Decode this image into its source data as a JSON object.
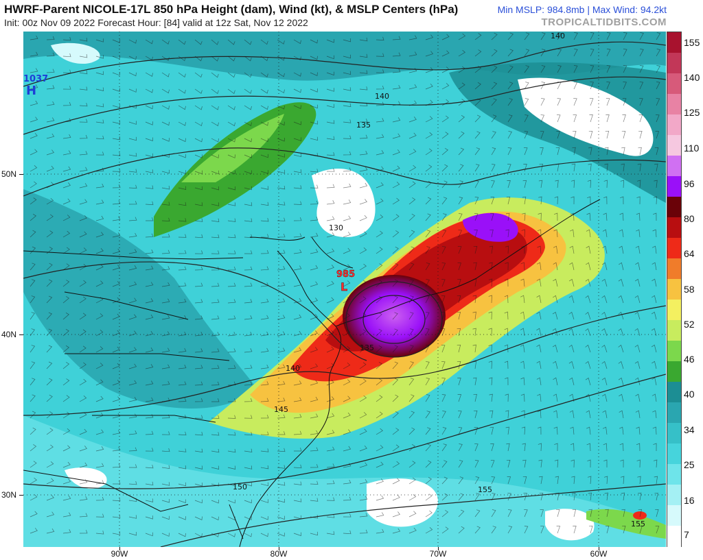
{
  "header": {
    "title": "HWRF-Parent NICOLE-17L 850 hPa Height (dam), Wind (kt), & MSLP Centers (hPa)",
    "subtitle": "Init: 00z Nov 09 2022   Forecast Hour: [84]   valid at 12z Sat, Nov 12 2022",
    "stats": "Min MSLP: 984.8mb | Max Wind: 94.2kt",
    "brand": "TROPICALTIDBITS.COM"
  },
  "axes": {
    "latitudes": [
      "50N",
      "40N",
      "30N"
    ],
    "longitudes": [
      "90W",
      "80W",
      "70W",
      "60W"
    ]
  },
  "colorbar": {
    "labels": [
      "155",
      "140",
      "125",
      "110",
      "96",
      "80",
      "64",
      "58",
      "52",
      "46",
      "40",
      "34",
      "25",
      "16",
      "7"
    ],
    "colors": [
      "#a8122e",
      "#c23758",
      "#d75a7a",
      "#e882a4",
      "#f2a8c8",
      "#f6c8e0",
      "#d070f2",
      "#9a10f8",
      "#6a0208",
      "#b80e10",
      "#ee2a18",
      "#f07c2a",
      "#f7c240",
      "#f4f060",
      "#c8ec5e",
      "#7cd84c",
      "#3aa830",
      "#1c8e94",
      "#2aa6b0",
      "#36c0c8",
      "#46d4dc",
      "#6ee4ea",
      "#a4f0f4",
      "#d6fafc",
      "#ffffff"
    ]
  },
  "map": {
    "high_center": {
      "value": "1037",
      "symbol": "H"
    },
    "low_center": {
      "value": "985",
      "symbol": "L"
    },
    "contour_labels": [
      "140",
      "140",
      "135",
      "130",
      "145",
      "150",
      "155",
      "155",
      "140",
      "135"
    ]
  }
}
